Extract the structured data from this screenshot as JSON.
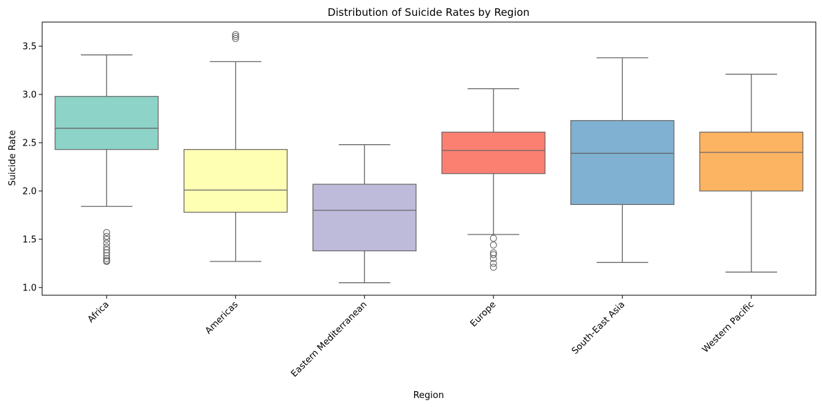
{
  "chart_data": {
    "type": "box",
    "title": "Distribution of Suicide Rates by Region",
    "xlabel": "Region",
    "ylabel": "Suicide Rate",
    "ylim": [
      0.92,
      3.75
    ],
    "yticks": [
      "1.0",
      "1.5",
      "2.0",
      "2.5",
      "3.0",
      "3.5"
    ],
    "ytick_values": [
      1.0,
      1.5,
      2.0,
      2.5,
      3.0,
      3.5
    ],
    "grid": false,
    "categories": [
      "Africa",
      "Americas",
      "Eastern Mediterranean",
      "Europe",
      "South-East Asia",
      "Western Pacific"
    ],
    "boxes": [
      {
        "category": "Africa",
        "whisker_low": 1.84,
        "q1": 2.43,
        "median": 2.65,
        "q3": 2.98,
        "whisker_high": 3.41,
        "outliers": [
          1.27,
          1.28,
          1.3,
          1.33,
          1.36,
          1.39,
          1.42,
          1.46,
          1.5,
          1.53,
          1.57
        ],
        "color": "#8dd3c7"
      },
      {
        "category": "Americas",
        "whisker_low": 1.27,
        "q1": 1.78,
        "median": 2.01,
        "q3": 2.43,
        "whisker_high": 3.34,
        "outliers": [
          3.58,
          3.6,
          3.62
        ],
        "color": "#ffffb3"
      },
      {
        "category": "Eastern Mediterranean",
        "whisker_low": 1.05,
        "q1": 1.38,
        "median": 1.8,
        "q3": 2.07,
        "whisker_high": 2.48,
        "outliers": [],
        "color": "#bebada"
      },
      {
        "category": "Europe",
        "whisker_low": 1.55,
        "q1": 2.18,
        "median": 2.42,
        "q3": 2.61,
        "whisker_high": 3.06,
        "outliers": [
          1.21,
          1.25,
          1.3,
          1.34,
          1.36,
          1.44,
          1.51
        ],
        "color": "#fb8072"
      },
      {
        "category": "South-East Asia",
        "whisker_low": 1.26,
        "q1": 1.86,
        "median": 2.39,
        "q3": 2.73,
        "whisker_high": 3.38,
        "outliers": [],
        "color": "#80b1d3"
      },
      {
        "category": "Western Pacific",
        "whisker_low": 1.16,
        "q1": 2.0,
        "median": 2.4,
        "q3": 2.61,
        "whisker_high": 3.21,
        "outliers": [],
        "color": "#fdb462"
      }
    ]
  }
}
